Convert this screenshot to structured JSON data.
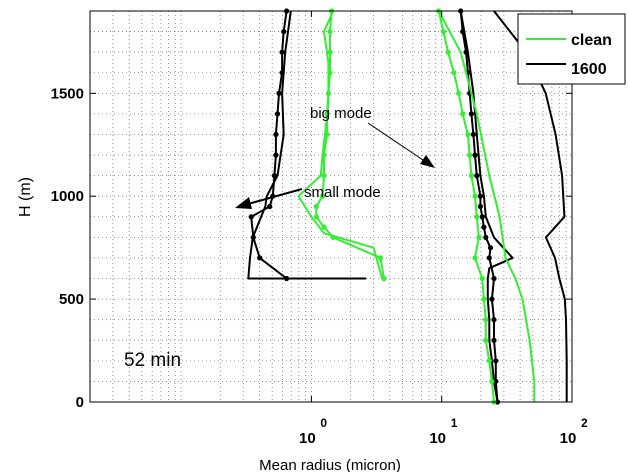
{
  "chart_data": {
    "type": "line",
    "title": "",
    "xlabel": "Mean radius (micron)",
    "ylabel": "H (m)",
    "xscale": "log",
    "xlim": [
      0.2,
      1000
    ],
    "ylim": [
      0,
      1900
    ],
    "grid": true,
    "legend_position": "top-right",
    "legend": [
      {
        "label": "clean",
        "color": "#33ee33"
      },
      {
        "label": "1600",
        "color": "#000000"
      }
    ],
    "y_ticks": [
      {
        "value": 0,
        "label": "0"
      },
      {
        "value": 500,
        "label": "500"
      },
      {
        "value": 1000,
        "label": "1000"
      },
      {
        "value": 1500,
        "label": "1500"
      }
    ],
    "x_ticks": [
      {
        "value": 10,
        "label": "10",
        "exp": "0"
      },
      {
        "value": 100,
        "label": "10",
        "exp": "1"
      },
      {
        "value": 1000,
        "label": "10",
        "exp": "2"
      }
    ],
    "annotations": {
      "time": "52 min",
      "big_mode": "big mode",
      "small_mode": "small mode"
    },
    "series": [
      {
        "color": "#000000",
        "markers": true,
        "points": [
          [
            6.45,
            1900
          ],
          [
            6.13,
            1800
          ],
          [
            5.96,
            1700
          ],
          [
            5.96,
            1600
          ],
          [
            5.64,
            1500
          ],
          [
            5.49,
            1400
          ],
          [
            5.34,
            1300
          ],
          [
            5.34,
            1200
          ],
          [
            5.2,
            1100
          ],
          [
            5.06,
            1000
          ],
          [
            4.79,
            950
          ],
          [
            3.45,
            900
          ],
          [
            3.58,
            800
          ],
          [
            4.01,
            700
          ],
          [
            6.45,
            600
          ]
        ]
      },
      {
        "color": "#000000",
        "markers": false,
        "points": [
          [
            6.95,
            1900
          ],
          [
            6.3,
            1700
          ],
          [
            5.96,
            1500
          ],
          [
            6.13,
            1300
          ],
          [
            5.49,
            1100
          ],
          [
            4.55,
            1000
          ],
          [
            4.43,
            950
          ],
          [
            3.55,
            800
          ],
          [
            3.38,
            700
          ],
          [
            3.28,
            600
          ],
          [
            26.3,
            600
          ]
        ]
      },
      {
        "color": "#33ee33",
        "markers": true,
        "points": [
          [
            14.3,
            1900
          ],
          [
            13.9,
            1800
          ],
          [
            13.9,
            1700
          ],
          [
            13.9,
            1600
          ],
          [
            13.5,
            1500
          ],
          [
            13.2,
            1400
          ],
          [
            13.2,
            1300
          ],
          [
            12.5,
            1200
          ],
          [
            12.5,
            1100
          ],
          [
            12.2,
            1000
          ],
          [
            10.9,
            950
          ],
          [
            10.9,
            900
          ],
          [
            12.5,
            850
          ],
          [
            14.7,
            800
          ],
          [
            33.9,
            700
          ],
          [
            36.1,
            600
          ]
        ]
      },
      {
        "color": "#33ee33",
        "markers": false,
        "points": [
          [
            14.7,
            1900
          ],
          [
            12.5,
            1800
          ],
          [
            13.5,
            1650
          ],
          [
            13.5,
            1450
          ],
          [
            12.2,
            1200
          ],
          [
            11.8,
            1100
          ],
          [
            7.97,
            1000
          ],
          [
            10.0,
            900
          ],
          [
            12.5,
            820
          ],
          [
            30.0,
            750
          ],
          [
            34.9,
            600
          ]
        ]
      },
      {
        "color": "#000000",
        "markers": true,
        "points": [
          [
            140,
            1900
          ],
          [
            145,
            1800
          ],
          [
            154,
            1700
          ],
          [
            159,
            1600
          ],
          [
            164,
            1500
          ],
          [
            169,
            1400
          ],
          [
            175,
            1300
          ],
          [
            180,
            1200
          ],
          [
            186,
            1100
          ],
          [
            198,
            1000
          ],
          [
            198,
            950
          ],
          [
            205,
            900
          ],
          [
            211,
            850
          ],
          [
            218,
            800
          ],
          [
            237,
            750
          ],
          [
            232,
            700
          ],
          [
            252,
            600
          ],
          [
            243,
            500
          ],
          [
            252,
            400
          ],
          [
            252,
            300
          ],
          [
            260,
            200
          ],
          [
            260,
            100
          ],
          [
            268,
            0
          ]
        ]
      },
      {
        "color": "#000000",
        "markers": false,
        "points": [
          [
            140,
            1900
          ],
          [
            159,
            1700
          ],
          [
            175,
            1500
          ],
          [
            186,
            1300
          ],
          [
            198,
            1100
          ],
          [
            211,
            1000
          ],
          [
            218,
            900
          ],
          [
            252,
            800
          ],
          [
            350,
            700
          ],
          [
            232,
            650
          ],
          [
            226,
            600
          ],
          [
            226,
            500
          ],
          [
            232,
            400
          ],
          [
            232,
            300
          ],
          [
            243,
            200
          ],
          [
            252,
            100
          ],
          [
            268,
            0
          ]
        ]
      },
      {
        "color": "#33ee33",
        "markers": true,
        "points": [
          [
            94.9,
            1900
          ],
          [
            103,
            1800
          ],
          [
            112,
            1700
          ],
          [
            124,
            1600
          ],
          [
            135,
            1500
          ],
          [
            145,
            1400
          ],
          [
            159,
            1300
          ],
          [
            164,
            1200
          ],
          [
            169,
            1100
          ],
          [
            180,
            1000
          ],
          [
            186,
            900
          ],
          [
            193,
            800
          ],
          [
            180,
            700
          ],
          [
            205,
            600
          ],
          [
            211,
            500
          ],
          [
            218,
            400
          ],
          [
            218,
            300
          ],
          [
            232,
            200
          ],
          [
            243,
            100
          ],
          [
            252,
            0
          ]
        ]
      },
      {
        "color": "#33ee33",
        "markers": false,
        "points": [
          [
            94.9,
            1900
          ],
          [
            140,
            1700
          ],
          [
            186,
            1400
          ],
          [
            232,
            1100
          ],
          [
            278,
            900
          ],
          [
            309,
            700
          ],
          [
            368,
            600
          ],
          [
            417,
            500
          ],
          [
            473,
            300
          ],
          [
            514,
            100
          ],
          [
            514,
            0
          ]
        ]
      },
      {
        "color": "#000000",
        "markers": false,
        "points": [
          [
            252,
            1900
          ],
          [
            445,
            1700
          ],
          [
            628,
            1500
          ],
          [
            748,
            1300
          ],
          [
            840,
            1100
          ],
          [
            874,
            900
          ],
          [
            630,
            800
          ],
          [
            740,
            700
          ],
          [
            800,
            600
          ],
          [
            880,
            500
          ],
          [
            900,
            400
          ],
          [
            910,
            200
          ],
          [
            910,
            0
          ]
        ]
      }
    ]
  }
}
